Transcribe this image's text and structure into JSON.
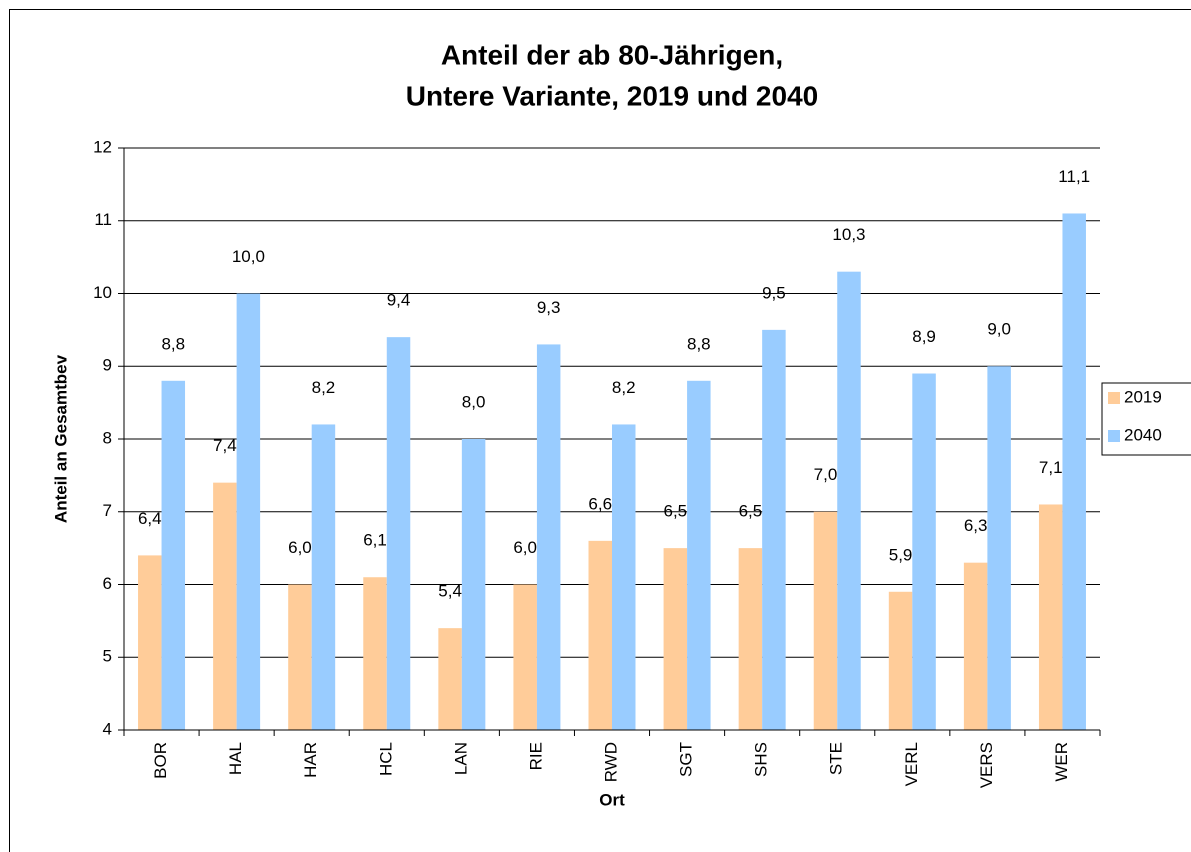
{
  "chart_data": {
    "type": "bar",
    "title": [
      "Anteil der ab 80-Jährigen,",
      "Untere Variante, 2019 und 2040"
    ],
    "x_label": "Ort",
    "y_label": "Anteil an Gesamtbev",
    "categories": [
      "BOR",
      "HAL",
      "HAR",
      "HCL",
      "LAN",
      "RIE",
      "RWD",
      "SGT",
      "SHS",
      "STE",
      "VERL",
      "VERS",
      "WER"
    ],
    "series": [
      {
        "name": "2019",
        "color": "#FFCC99",
        "values": [
          6.4,
          7.4,
          6.0,
          6.1,
          5.4,
          6.0,
          6.6,
          6.5,
          6.5,
          7.0,
          5.9,
          6.3,
          7.1
        ],
        "value_labels": [
          "6,4",
          "7,4",
          "6,0",
          "6,1",
          "5,4",
          "6,0",
          "6,6",
          "6,5",
          "6,5",
          "7,0",
          "5,9",
          "6,3",
          "7,1"
        ]
      },
      {
        "name": "2040",
        "color": "#99CCFF",
        "values": [
          8.8,
          10.0,
          8.2,
          9.4,
          8.0,
          9.3,
          8.2,
          8.8,
          9.5,
          10.3,
          8.9,
          9.0,
          11.1
        ],
        "value_labels": [
          "8,8",
          "10,0",
          "8,2",
          "9,4",
          "8,0",
          "9,3",
          "8,2",
          "8,8",
          "9,5",
          "10,3",
          "8,9",
          "9,0",
          "11,1"
        ]
      }
    ],
    "ylim": [
      4,
      12
    ],
    "yticks": [
      4,
      5,
      6,
      7,
      8,
      9,
      10,
      11,
      12
    ],
    "grid": true,
    "legend": "right"
  }
}
